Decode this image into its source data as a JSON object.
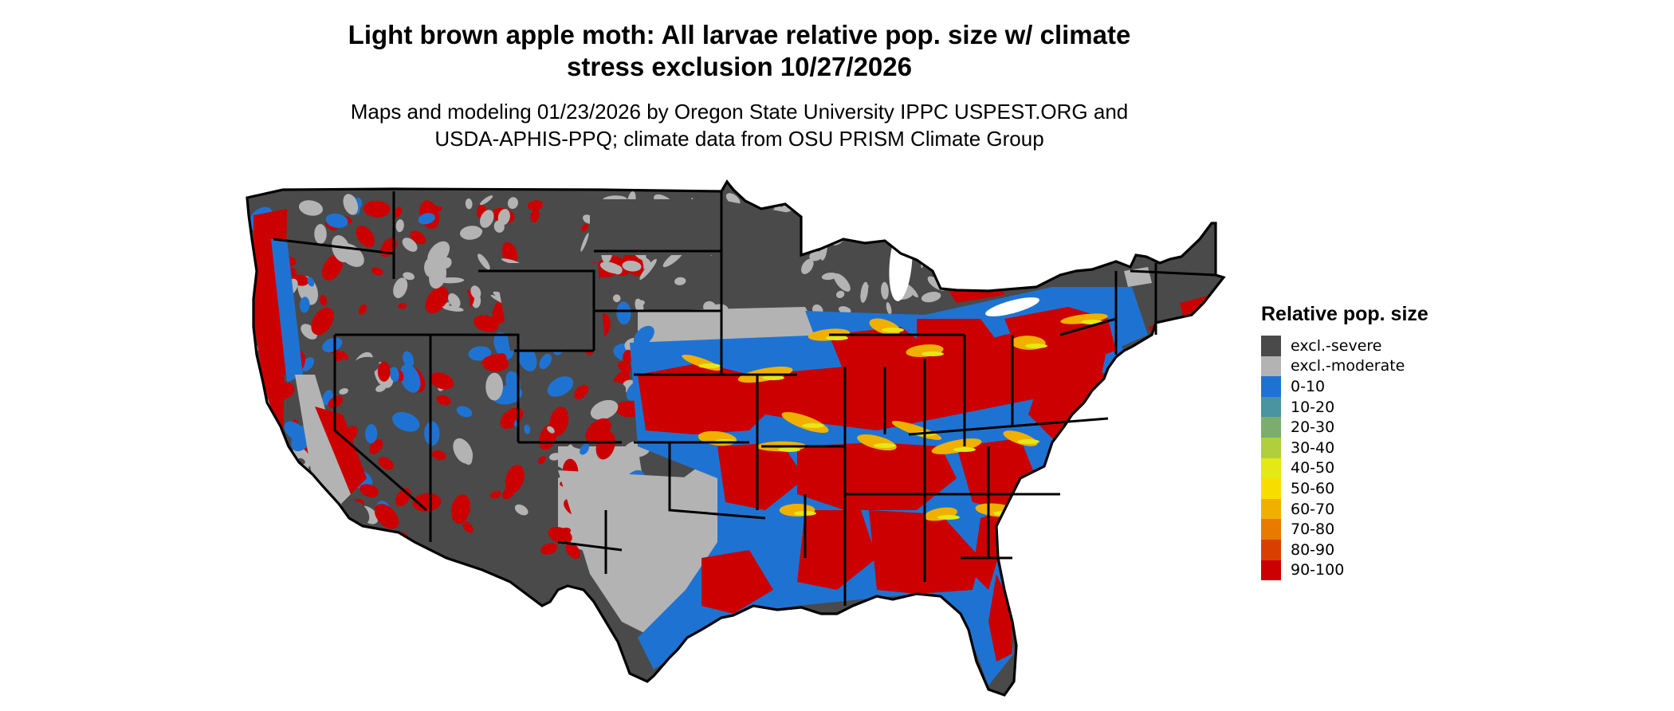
{
  "title_line1": "Light brown apple moth: All larvae relative pop. size w/ climate",
  "title_line2": "stress exclusion 10/27/2026",
  "subtitle_line1": "Maps and modeling 01/23/2026 by Oregon State University IPPC USPEST.ORG and",
  "subtitle_line2": "USDA-APHIS-PPQ; climate data from OSU PRISM Climate Group",
  "legend": {
    "title": "Relative pop. size",
    "items": [
      {
        "label": "excl.-severe",
        "color": "#4a4a4a"
      },
      {
        "label": "excl.-moderate",
        "color": "#b3b3b3"
      },
      {
        "label": "0-10",
        "color": "#1e73d2"
      },
      {
        "label": "10-20",
        "color": "#4a93a0"
      },
      {
        "label": "20-30",
        "color": "#7bad6e"
      },
      {
        "label": "30-40",
        "color": "#b1cf3c"
      },
      {
        "label": "40-50",
        "color": "#e4e816"
      },
      {
        "label": "50-60",
        "color": "#f8de00"
      },
      {
        "label": "60-70",
        "color": "#f1b000"
      },
      {
        "label": "70-80",
        "color": "#e87a00"
      },
      {
        "label": "80-90",
        "color": "#d94000"
      },
      {
        "label": "90-100",
        "color": "#cc0000"
      }
    ]
  }
}
